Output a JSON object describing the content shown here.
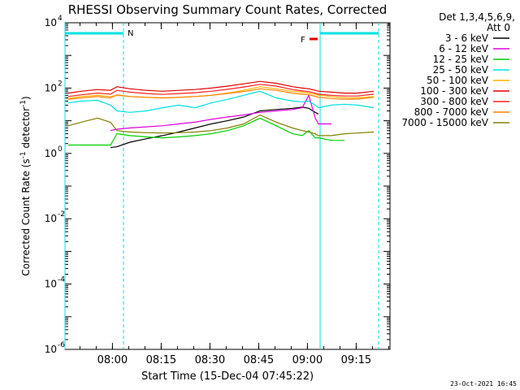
{
  "chart_data": {
    "type": "line",
    "title": "RHESSI Observing Summary Count Rates, Corrected",
    "xlabel": "Start Time (15-Dec-04 07:45:22)",
    "ylabel_main": "Corrected Count Rate (s",
    "ylabel_sup": "-1",
    "ylabel_mid": " detector",
    "ylabel_end": ")",
    "ylog": true,
    "ylim": [
      1e-06,
      10000.0
    ],
    "xlim_minutes": [
      0,
      100
    ],
    "x_start": "07:45:22",
    "x_tick_labels": [
      "08:00",
      "08:15",
      "08:30",
      "08:45",
      "09:00",
      "09:15"
    ],
    "x_tick_minutes": [
      14.6,
      29.6,
      44.6,
      59.6,
      74.6,
      89.6
    ],
    "y_tick_exponents": [
      -6,
      -4,
      -2,
      0,
      2,
      4
    ],
    "legend_header": [
      "Det 1,3,4,5,6,9,",
      "Att 0"
    ],
    "legend_position": "right",
    "annotations": {
      "night_label": "N",
      "flare_label": "F",
      "timestamp": "23-Oct-2021 16:45"
    },
    "night_intervals": [
      [
        0,
        18
      ],
      [
        78.5,
        96.5
      ]
    ],
    "flare_interval": [
      76,
      78
    ],
    "series": [
      {
        "name": "3 - 6 keV",
        "color": "#000000",
        "x": [
          14,
          16,
          20,
          25,
          30,
          35,
          40,
          45,
          50,
          55,
          60,
          65,
          70,
          73,
          75,
          77,
          78
        ],
        "y": [
          1.5,
          1.6,
          2.2,
          2.8,
          3.5,
          4.5,
          6,
          8,
          10,
          13,
          20,
          22,
          24,
          26,
          24,
          18,
          16
        ]
      },
      {
        "name": "6 - 12 keV",
        "color": "#e000e0",
        "x": [
          14,
          16,
          20,
          25,
          30,
          35,
          40,
          45,
          50,
          55,
          60,
          65,
          70,
          73,
          75,
          77,
          78,
          82
        ],
        "y": [
          5,
          5.5,
          6,
          6.5,
          7,
          8,
          9,
          11,
          13,
          15,
          18,
          20,
          22,
          25,
          60,
          12,
          8,
          8
        ]
      },
      {
        "name": "12 - 25 keV",
        "color": "#00d000",
        "x": [
          1,
          5,
          10,
          14,
          16,
          20,
          25,
          30,
          35,
          40,
          45,
          50,
          55,
          60,
          65,
          70,
          73,
          75,
          77,
          78,
          82,
          86
        ],
        "y": [
          1.8,
          1.8,
          1.8,
          1.8,
          4,
          3.5,
          3.2,
          3,
          3.2,
          3.5,
          4,
          5,
          7,
          12,
          7,
          4,
          3.5,
          5,
          3,
          3,
          2.5,
          2.5
        ]
      },
      {
        "name": "25 - 50 keV",
        "color": "#00e0e0",
        "x": [
          1,
          5,
          10,
          14,
          16,
          20,
          25,
          30,
          35,
          40,
          45,
          50,
          55,
          60,
          65,
          70,
          73,
          75,
          77,
          78,
          82,
          86,
          90,
          95
        ],
        "y": [
          35,
          40,
          42,
          30,
          20,
          18,
          20,
          25,
          30,
          25,
          35,
          45,
          60,
          80,
          50,
          40,
          38,
          40,
          30,
          25,
          30,
          32,
          30,
          25
        ]
      },
      {
        "name": "50 - 100 keV",
        "color": "#ffb000",
        "x": [
          1,
          5,
          10,
          14,
          16,
          20,
          25,
          30,
          35,
          40,
          45,
          50,
          55,
          60,
          65,
          70,
          73,
          75,
          77,
          78,
          82,
          86,
          90,
          95
        ],
        "y": [
          48,
          55,
          60,
          55,
          60,
          55,
          52,
          50,
          52,
          55,
          60,
          70,
          85,
          110,
          95,
          80,
          75,
          70,
          65,
          60,
          55,
          50,
          50,
          55
        ]
      },
      {
        "name": "100 - 300 keV",
        "color": "#e00000",
        "x": [
          1,
          5,
          10,
          14,
          16,
          20,
          25,
          30,
          35,
          40,
          45,
          50,
          55,
          60,
          65,
          70,
          73,
          75,
          77,
          78,
          82,
          86,
          90,
          95
        ],
        "y": [
          70,
          80,
          90,
          85,
          110,
          95,
          85,
          80,
          85,
          90,
          100,
          115,
          135,
          160,
          140,
          110,
          100,
          95,
          85,
          80,
          75,
          70,
          70,
          80
        ]
      },
      {
        "name": "300 - 800 keV",
        "color": "#ff2020",
        "x": [
          1,
          5,
          10,
          14,
          16,
          20,
          25,
          30,
          35,
          40,
          45,
          50,
          55,
          60,
          65,
          70,
          73,
          75,
          77,
          78,
          82,
          86,
          90,
          95
        ],
        "y": [
          55,
          62,
          70,
          65,
          85,
          75,
          68,
          64,
          68,
          72,
          80,
          92,
          108,
          130,
          115,
          90,
          82,
          78,
          70,
          65,
          60,
          57,
          57,
          65
        ]
      },
      {
        "name": "800 - 7000 keV",
        "color": "#ff8000",
        "x": [
          1,
          5,
          10,
          14,
          16,
          20,
          25,
          30,
          35,
          40,
          45,
          50,
          55,
          60,
          65,
          70,
          73,
          75,
          77,
          78,
          82,
          86,
          90,
          95
        ],
        "y": [
          45,
          50,
          55,
          50,
          62,
          55,
          52,
          50,
          52,
          55,
          60,
          68,
          78,
          95,
          85,
          70,
          65,
          62,
          56,
          52,
          48,
          45,
          46,
          52
        ]
      },
      {
        "name": "7000 - 15000 keV",
        "color": "#808000",
        "x": [
          1,
          5,
          10,
          14,
          16,
          20,
          25,
          30,
          35,
          40,
          45,
          50,
          55,
          60,
          65,
          70,
          73,
          75,
          77,
          78,
          82,
          86,
          90,
          95
        ],
        "y": [
          7,
          9,
          12,
          9,
          5,
          4.5,
          4.3,
          4.2,
          4.3,
          4.5,
          5,
          6,
          8,
          15,
          9,
          6,
          5,
          4.5,
          4,
          3.5,
          3.5,
          4,
          4.2,
          4.5
        ]
      }
    ]
  }
}
